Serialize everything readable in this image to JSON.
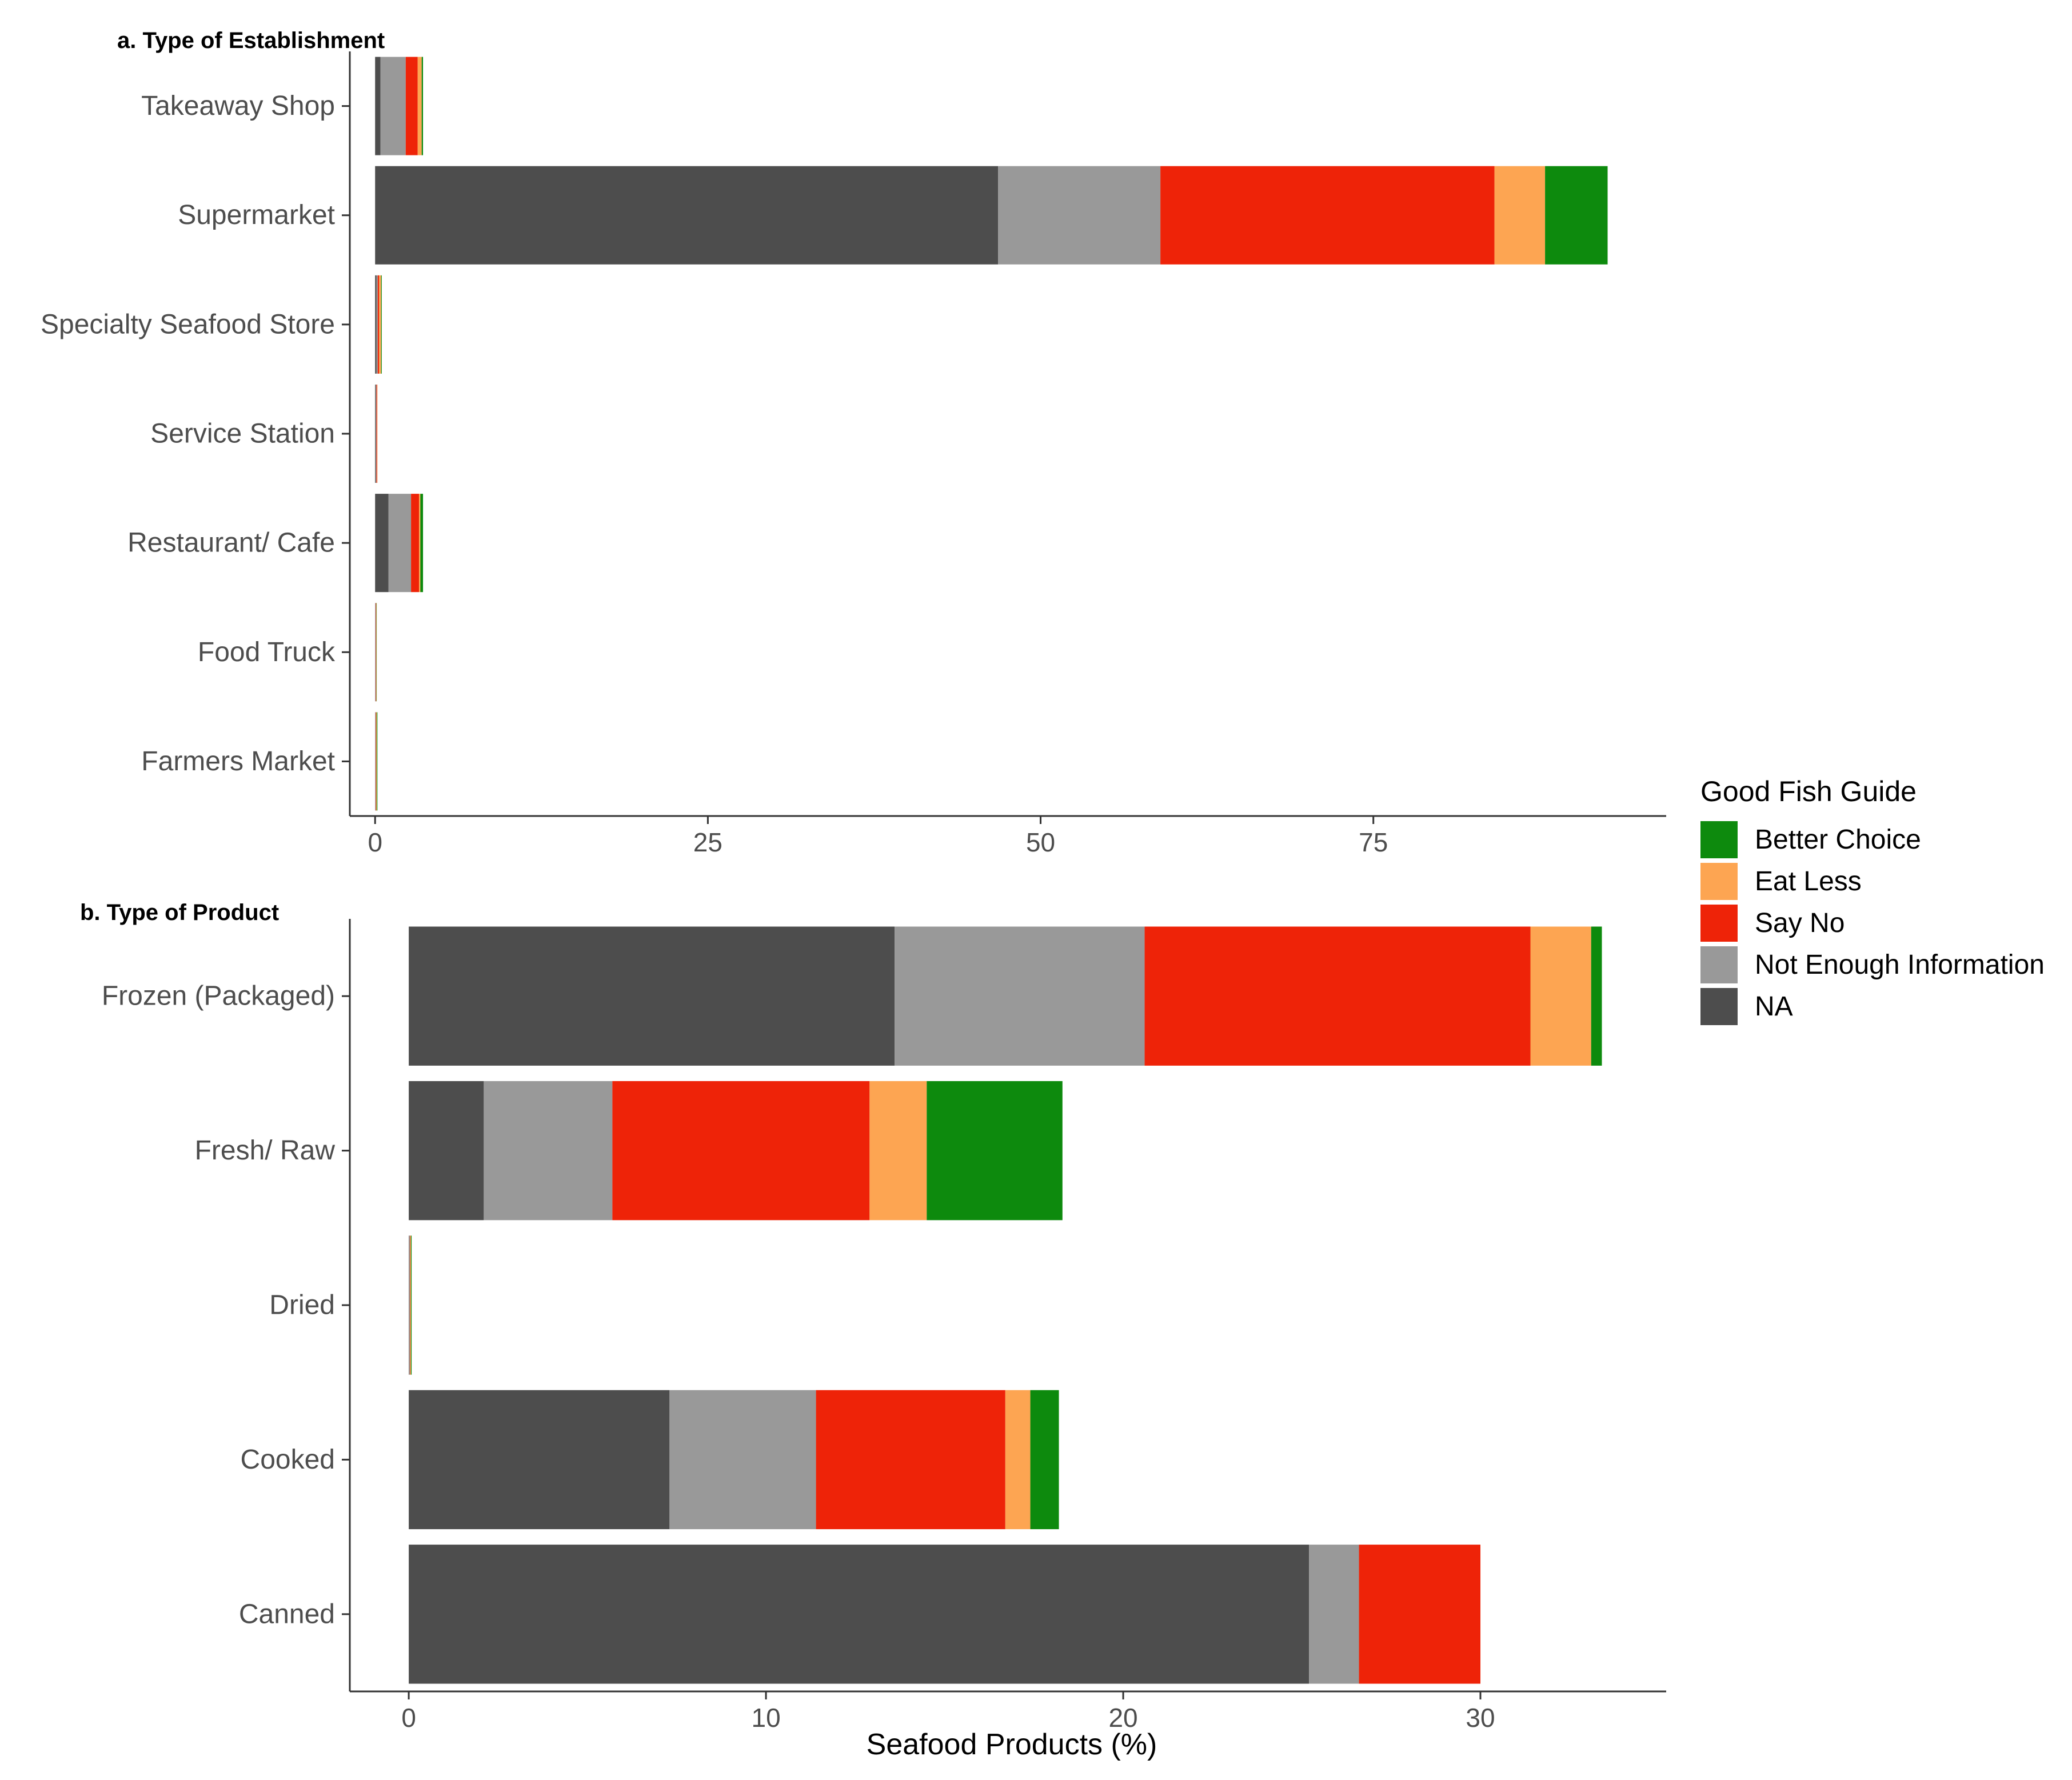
{
  "chart_data": [
    {
      "type": "bar",
      "orientation": "horizontal",
      "stacked": true,
      "title": "a. Type of Establishment",
      "xlabel": "",
      "ylabel": "",
      "xlim": [
        -1.9,
        97
      ],
      "xticks": [
        0,
        25,
        50,
        75
      ],
      "grid": false,
      "categories": [
        "Takeaway Shop",
        "Supermarket",
        "Specialty Seafood Store",
        "Service Station",
        "Restaurant/ Cafe",
        "Food Truck",
        "Farmers Market"
      ],
      "series": [
        {
          "name": "NA",
          "values": [
            0.4,
            46.8,
            0.1,
            0.05,
            1.0,
            0.0,
            0.0
          ]
        },
        {
          "name": "Not Enough Information",
          "values": [
            1.9,
            12.2,
            0.1,
            0.05,
            1.7,
            0.05,
            0.05
          ]
        },
        {
          "name": "Say No",
          "values": [
            0.9,
            25.1,
            0.1,
            0.05,
            0.6,
            0.03,
            0.03
          ]
        },
        {
          "name": "Eat Less",
          "values": [
            0.3,
            3.8,
            0.15,
            0.02,
            0.1,
            0.02,
            0.04
          ]
        },
        {
          "name": "Better Choice",
          "values": [
            0.1,
            4.7,
            0.05,
            0.0,
            0.2,
            0.02,
            0.05
          ]
        }
      ]
    },
    {
      "type": "bar",
      "orientation": "horizontal",
      "stacked": true,
      "title": "b. Type of Product",
      "xlabel": "Seafood Products (%)",
      "ylabel": "",
      "xlim": [
        -1.65,
        35.2
      ],
      "xticks": [
        0,
        10,
        20,
        30
      ],
      "grid": false,
      "categories": [
        "Frozen (Packaged)",
        "Fresh/ Raw",
        "Dried",
        "Cooked",
        "Canned"
      ],
      "series": [
        {
          "name": "NA",
          "values": [
            13.6,
            2.1,
            0.01,
            7.3,
            25.2
          ]
        },
        {
          "name": "Not Enough Information",
          "values": [
            7.0,
            3.6,
            0.02,
            4.1,
            1.4
          ]
        },
        {
          "name": "Say No",
          "values": [
            10.8,
            7.2,
            0.01,
            5.3,
            3.4
          ]
        },
        {
          "name": "Eat Less",
          "values": [
            1.7,
            1.6,
            0.02,
            0.7,
            0.0
          ]
        },
        {
          "name": "Better Choice",
          "values": [
            0.3,
            3.8,
            0.02,
            0.8,
            0.0
          ]
        }
      ]
    }
  ],
  "legend": {
    "title": "Good Fish Guide",
    "placement": "right",
    "items": [
      {
        "name": "Better Choice",
        "color": "#0d8a0d"
      },
      {
        "name": "Eat Less",
        "color": "#fda552"
      },
      {
        "name": "Say No",
        "color": "#ee2308"
      },
      {
        "name": "Not Enough Information",
        "color": "#999999"
      },
      {
        "name": "NA",
        "color": "#4d4d4d"
      }
    ]
  }
}
